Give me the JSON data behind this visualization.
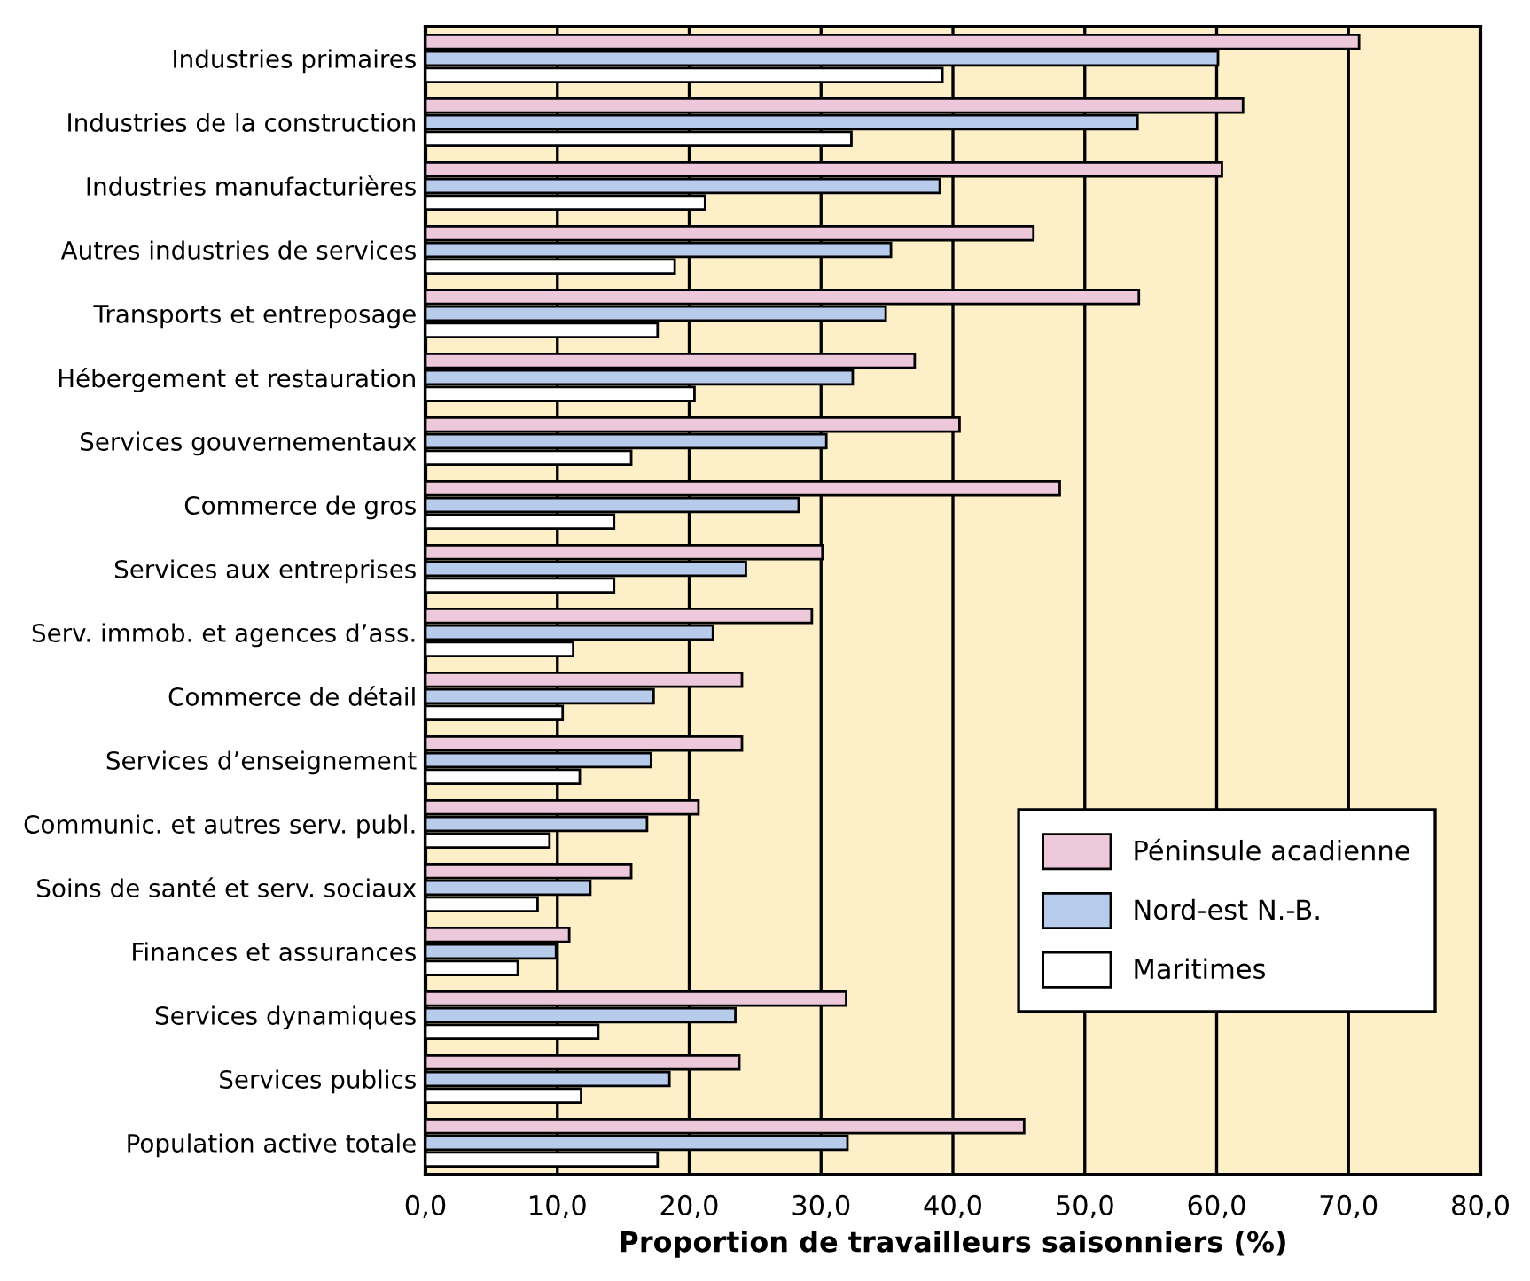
{
  "chart_data": {
    "type": "bar",
    "orientation": "horizontal",
    "xlabel": "Proportion de travailleurs saisonniers (%)",
    "categories": [
      "Industries primaires",
      "Industries de la construction",
      "Industries manufacturières",
      "Autres industries de services",
      "Transports et entreposage",
      "Hébergement et restauration",
      "Services gouvernementaux",
      "Commerce de gros",
      "Services aux entreprises",
      "Serv. immob. et agences d’ass.",
      "Commerce de détail",
      "Services d’enseignement",
      "Communic. et autres serv. publ.",
      "Soins de santé et serv. sociaux",
      "Finances et assurances",
      "Services dynamiques",
      "Services publics",
      "Population active totale"
    ],
    "series": [
      {
        "name": "Péninsule acadienne",
        "color": "#ecc8da",
        "values": [
          70.8,
          62.0,
          60.4,
          46.1,
          54.1,
          37.1,
          40.5,
          48.1,
          30.1,
          29.3,
          24.0,
          24.0,
          20.7,
          15.6,
          10.9,
          31.9,
          23.8,
          45.4
        ]
      },
      {
        "name": "Nord-est N.-B.",
        "color": "#b7cbea",
        "values": [
          60.1,
          54.0,
          39.0,
          35.3,
          34.9,
          32.4,
          30.4,
          28.3,
          24.3,
          21.8,
          17.3,
          17.1,
          16.8,
          12.5,
          9.9,
          23.5,
          18.5,
          32.0
        ]
      },
      {
        "name": "Maritimes",
        "color": "#ffffff",
        "values": [
          39.2,
          32.3,
          21.2,
          18.9,
          17.6,
          20.4,
          15.6,
          14.3,
          14.3,
          11.2,
          10.4,
          11.7,
          9.4,
          8.5,
          7.0,
          13.1,
          11.8,
          17.6
        ]
      }
    ],
    "xlim": [
      0,
      80
    ],
    "xticks": [
      {
        "value": 0,
        "label": "0,0"
      },
      {
        "value": 10,
        "label": "10,0"
      },
      {
        "value": 20,
        "label": "20,0"
      },
      {
        "value": 30,
        "label": "30,0"
      },
      {
        "value": 40,
        "label": "40,0"
      },
      {
        "value": 50,
        "label": "50,0"
      },
      {
        "value": 60,
        "label": "60,0"
      },
      {
        "value": 70,
        "label": "70,0"
      },
      {
        "value": 80,
        "label": "80,0"
      }
    ],
    "grid": "x",
    "legend": "right"
  }
}
